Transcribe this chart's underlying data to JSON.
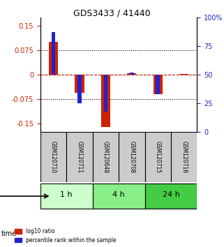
{
  "title": "GDS3433 / 41440",
  "samples": [
    "GSM120710",
    "GSM120711",
    "GSM120648",
    "GSM120708",
    "GSM120715",
    "GSM120716"
  ],
  "log10_ratio": [
    0.1,
    -0.055,
    -0.16,
    0.005,
    -0.06,
    0.003
  ],
  "percentile_rank": [
    87,
    25,
    18,
    52,
    33,
    50
  ],
  "groups": [
    {
      "label": "1 h",
      "indices": [
        0,
        1
      ],
      "color": "#ccffcc"
    },
    {
      "label": "4 h",
      "indices": [
        2,
        3
      ],
      "color": "#88ee88"
    },
    {
      "label": "24 h",
      "indices": [
        4,
        5
      ],
      "color": "#44cc44"
    }
  ],
  "ylim_left": [
    -0.175,
    0.175
  ],
  "ylim_right": [
    0,
    100
  ],
  "yticks_left": [
    -0.15,
    -0.075,
    0,
    0.075,
    0.15
  ],
  "ytick_labels_left": [
    "-0.15",
    "-0.075",
    "0",
    "0.075",
    "0.15"
  ],
  "yticks_right": [
    0,
    25,
    50,
    75,
    100
  ],
  "ytick_labels_right": [
    "0",
    "25",
    "50",
    "75",
    "100%"
  ],
  "bar_color_red": "#cc2200",
  "bar_color_blue": "#2222cc",
  "sample_box_color": "#cccccc",
  "background_color": "#ffffff",
  "bar_width": 0.35,
  "blue_bar_width": 0.15
}
